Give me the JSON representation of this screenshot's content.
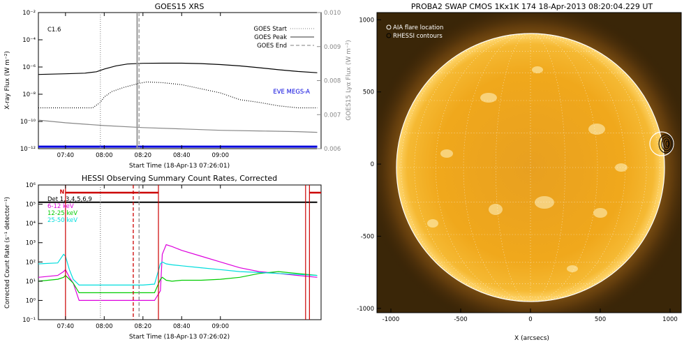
{
  "chart_data": [
    {
      "type": "line",
      "title": "GOES15 XRS",
      "xlabel": "Start Time (18-Apr-13 07:26:01)",
      "ylabel": "X-ray Flux (W m⁻²)",
      "ylabel_right": "GOES15 Lyα Flux (W m⁻²)",
      "annotation": "C1.6",
      "eve_label": "EVE MEGS-A",
      "x_ticks": [
        "07:40",
        "08:00",
        "08:20",
        "08:40",
        "09:00"
      ],
      "y_ticks": [
        "10⁻¹²",
        "10⁻¹⁰",
        "10⁻⁸",
        "10⁻⁶",
        "10⁻⁴",
        "10⁻²"
      ],
      "y_ticks_right": [
        "0.006",
        "0.007",
        "0.008",
        "0.009",
        "0.010"
      ],
      "ylim": [
        -12,
        -2
      ],
      "ylim_right": [
        0.006,
        0.01
      ],
      "legend": [
        {
          "name": "GOES Start",
          "time": "07:58",
          "style": "dotted"
        },
        {
          "name": "GOES Peak",
          "time": "08:17",
          "style": "solid"
        },
        {
          "name": "GOES End",
          "time": "08:18",
          "style": "dashed"
        }
      ],
      "legend_position": "top-right",
      "series": [
        {
          "name": "long",
          "color": "#000000",
          "style": "solid",
          "x": [
            26,
            40,
            50,
            56,
            60,
            66,
            72,
            80,
            90,
            100,
            110,
            120,
            130,
            140,
            150,
            160,
            170
          ],
          "y": [
            -6.55,
            -6.5,
            -6.45,
            -6.35,
            -6.15,
            -5.92,
            -5.78,
            -5.73,
            -5.72,
            -5.72,
            -5.75,
            -5.82,
            -5.92,
            -6.05,
            -6.2,
            -6.33,
            -6.42
          ]
        },
        {
          "name": "short",
          "color": "#000000",
          "style": "dotted",
          "x": [
            26,
            40,
            50,
            54,
            58,
            60,
            64,
            70,
            78,
            82,
            90,
            100,
            110,
            120,
            126,
            130,
            140,
            150,
            160,
            170
          ],
          "y": [
            -9,
            -9,
            -9,
            -9,
            -8.6,
            -8.2,
            -7.8,
            -7.5,
            -7.2,
            -7.1,
            -7.15,
            -7.3,
            -7.6,
            -7.9,
            -8.2,
            -8.4,
            -8.6,
            -8.85,
            -9,
            -9
          ]
        },
        {
          "name": "lya",
          "color": "#888888",
          "style": "solid",
          "x": [
            26,
            40,
            60,
            80,
            100,
            120,
            140,
            160,
            170
          ],
          "y": [
            -9.9,
            -10.1,
            -10.3,
            -10.45,
            -10.55,
            -10.65,
            -10.7,
            -10.75,
            -10.8
          ]
        },
        {
          "name": "EVE MEGS-A",
          "color": "#0000dd",
          "style": "solid",
          "x": [
            26,
            170
          ],
          "y": [
            -11.85,
            -11.85
          ]
        }
      ]
    },
    {
      "type": "line",
      "title": "HESSI Observing Summary Count Rates, Corrected",
      "xlabel": "Start Time (18-Apr-13 07:26:02)",
      "ylabel": "Corrected Count Rate (s⁻¹ detector⁻¹)",
      "x_ticks": [
        "07:40",
        "08:00",
        "08:20",
        "08:40",
        "09:00"
      ],
      "y_ticks": [
        "10⁻¹",
        "10⁰",
        "10¹",
        "10²",
        "10³",
        "10⁴",
        "10⁵",
        "10⁶"
      ],
      "ylim": [
        -1,
        6
      ],
      "flag_label": "N",
      "markers": [
        {
          "time": "08:15",
          "style": "dashed",
          "color": "#cc0000"
        },
        {
          "time": "08:18",
          "style": "dashed",
          "color": "#888888"
        },
        {
          "time": "07:58",
          "style": "dotted",
          "color": "#888888"
        }
      ],
      "legend": [
        {
          "name": "Det 1,3,4,5,6,9",
          "color": "#000000"
        },
        {
          "name": "6-12 keV",
          "color": "#dd00dd"
        },
        {
          "name": "12-25 keV",
          "color": "#00cc00"
        },
        {
          "name": "25-50 keV",
          "color": "#00dddd"
        }
      ],
      "legend_position": "top-left",
      "series": [
        {
          "name": "6-12 keV",
          "color": "#dd00dd",
          "x": [
            26,
            36,
            39,
            40,
            42,
            44,
            47,
            50,
            60,
            70,
            80,
            86,
            89,
            90,
            92,
            95,
            100,
            110,
            120,
            130,
            140,
            150,
            160,
            170
          ],
          "y": [
            1.2,
            1.3,
            1.5,
            1.6,
            1.2,
            0.9,
            0,
            0,
            0,
            0,
            0,
            0,
            0.5,
            2.4,
            2.9,
            2.8,
            2.6,
            2.3,
            2,
            1.7,
            1.5,
            1.4,
            1.3,
            1.2
          ]
        },
        {
          "name": "12-25 keV",
          "color": "#00cc00",
          "x": [
            26,
            36,
            39,
            40,
            42,
            44,
            47,
            50,
            60,
            70,
            80,
            86,
            89,
            90,
            92,
            95,
            100,
            110,
            120,
            130,
            140,
            150,
            160,
            170
          ],
          "y": [
            1,
            1.1,
            1.2,
            1.3,
            1.1,
            0.9,
            0.4,
            0.4,
            0.4,
            0.4,
            0.4,
            0.4,
            1.1,
            1.2,
            1.05,
            1,
            1.05,
            1.05,
            1.1,
            1.2,
            1.4,
            1.5,
            1.4,
            1.3
          ]
        },
        {
          "name": "25-50 keV",
          "color": "#00dddd",
          "x": [
            26,
            36,
            39,
            40,
            42,
            44,
            47,
            50,
            60,
            70,
            80,
            86,
            89,
            90,
            92,
            95,
            100,
            110,
            120,
            130,
            140,
            150,
            160,
            170
          ],
          "y": [
            1.9,
            1.95,
            2.4,
            2.3,
            1.6,
            1.1,
            0.8,
            0.8,
            0.8,
            0.8,
            0.8,
            0.85,
            1.9,
            2,
            1.9,
            1.85,
            1.8,
            1.7,
            1.6,
            1.5,
            1.45,
            1.4,
            1.35,
            1.3
          ]
        },
        {
          "name": "Det 1,3,4,5,6,9",
          "color": "#000000",
          "x": [
            26,
            170
          ],
          "y": [
            5.1,
            5.1
          ]
        }
      ]
    },
    {
      "type": "scatter",
      "title": "PROBA2 SWAP CMOS 1Kx1K 174 18-Apr-2013 08:20:04.229 UT",
      "xlabel": "X (arcsecs)",
      "x_ticks": [
        "-1000",
        "-500",
        "0",
        "500",
        "1000"
      ],
      "y_ticks": [
        "-1000",
        "-500",
        "0",
        "500",
        "1000"
      ],
      "xlim": [
        -1100,
        1080
      ],
      "ylim": [
        -1030,
        1050
      ],
      "legend": [
        "AIA flare location",
        "RHESSI contours"
      ],
      "legend_position": "top-left",
      "flare_location": {
        "x": 955,
        "y": 170
      }
    }
  ]
}
